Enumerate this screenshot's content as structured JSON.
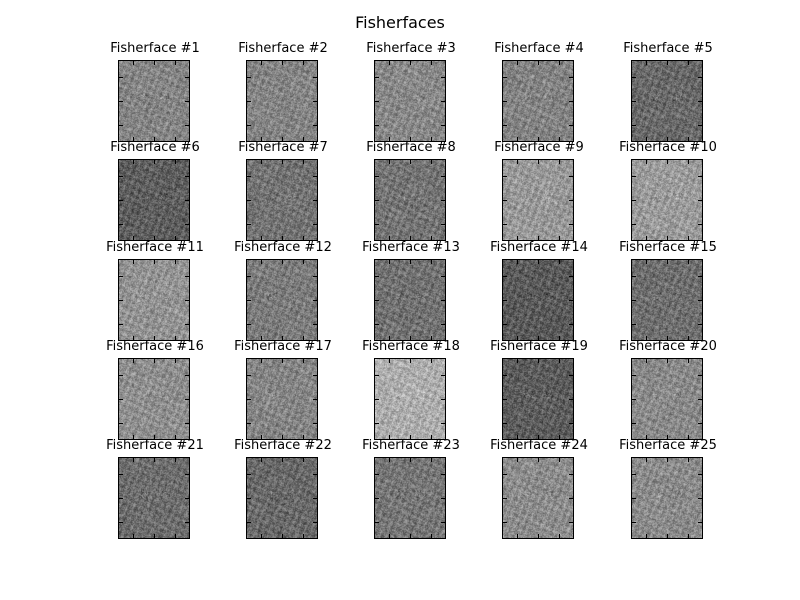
{
  "figure": {
    "title": "Fisherfaces"
  },
  "panels": [
    {
      "label": "Fisherface #1",
      "tone": "#858585"
    },
    {
      "label": "Fisherface #2",
      "tone": "#858585"
    },
    {
      "label": "Fisherface #3",
      "tone": "#898989"
    },
    {
      "label": "Fisherface #4",
      "tone": "#838383"
    },
    {
      "label": "Fisherface #5",
      "tone": "#696969"
    },
    {
      "label": "Fisherface #6",
      "tone": "#5f5f5f"
    },
    {
      "label": "Fisherface #7",
      "tone": "#747474"
    },
    {
      "label": "Fisherface #8",
      "tone": "#747474"
    },
    {
      "label": "Fisherface #9",
      "tone": "#999999"
    },
    {
      "label": "Fisherface #10",
      "tone": "#9b9b9b"
    },
    {
      "label": "Fisherface #11",
      "tone": "#939393"
    },
    {
      "label": "Fisherface #12",
      "tone": "#7b7b7b"
    },
    {
      "label": "Fisherface #13",
      "tone": "#717171"
    },
    {
      "label": "Fisherface #14",
      "tone": "#5b5b5b"
    },
    {
      "label": "Fisherface #15",
      "tone": "#6f6f6f"
    },
    {
      "label": "Fisherface #16",
      "tone": "#8f8f8f"
    },
    {
      "label": "Fisherface #17",
      "tone": "#868686"
    },
    {
      "label": "Fisherface #18",
      "tone": "#adadad"
    },
    {
      "label": "Fisherface #19",
      "tone": "#5d5d5d"
    },
    {
      "label": "Fisherface #20",
      "tone": "#8a8a8a"
    },
    {
      "label": "Fisherface #21",
      "tone": "#6d6d6d"
    },
    {
      "label": "Fisherface #22",
      "tone": "#696969"
    },
    {
      "label": "Fisherface #23",
      "tone": "#767676"
    },
    {
      "label": "Fisherface #24",
      "tone": "#8c8c8c"
    },
    {
      "label": "Fisherface #25",
      "tone": "#8b8b8b"
    }
  ]
}
